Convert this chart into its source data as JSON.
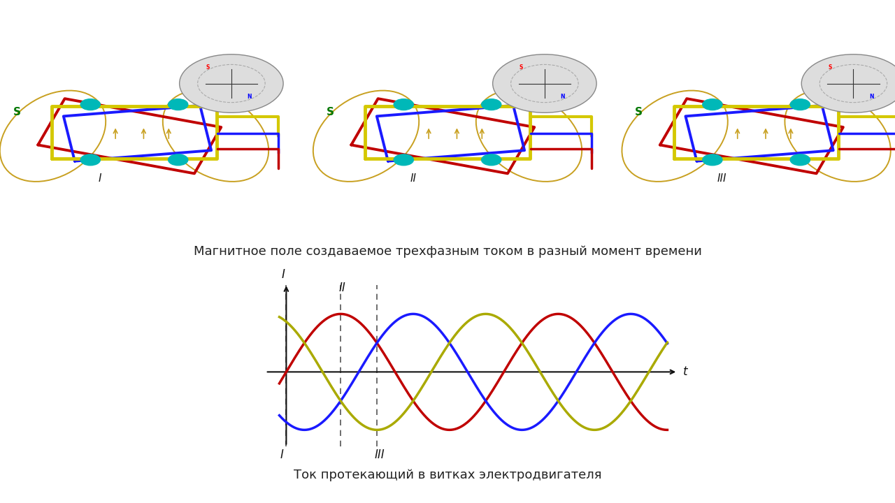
{
  "background_color": "#ffffff",
  "caption1": "Магнитное поле создаваемое трехфазным током в разный момент времени",
  "caption2": "Ток протекающий в витках электродвигателя",
  "y_axis_label": "I",
  "x_axis_label": "t",
  "phase_colors": [
    "#c00000",
    "#1a1aff",
    "#aaaa00"
  ],
  "dashed_line_color": "#555555",
  "axis_color": "#111111",
  "font_size_caption": 13,
  "font_size_labels": 12,
  "amplitude": 1.0,
  "phase_offsets": [
    0.0,
    -2.094,
    -4.189
  ],
  "motor_labels": [
    "I",
    "II",
    "III"
  ],
  "motor_label_color": "#1a1a1a",
  "panel_bg": "#ffffff",
  "yellow_coil": "#d4c800",
  "red_coil": "#c00000",
  "blue_coil": "#1a1aff",
  "teal_color": "#00b8b8",
  "green_s": "#007700",
  "compass_bg": "#dddddd",
  "arrow_tan": "#c8a020"
}
